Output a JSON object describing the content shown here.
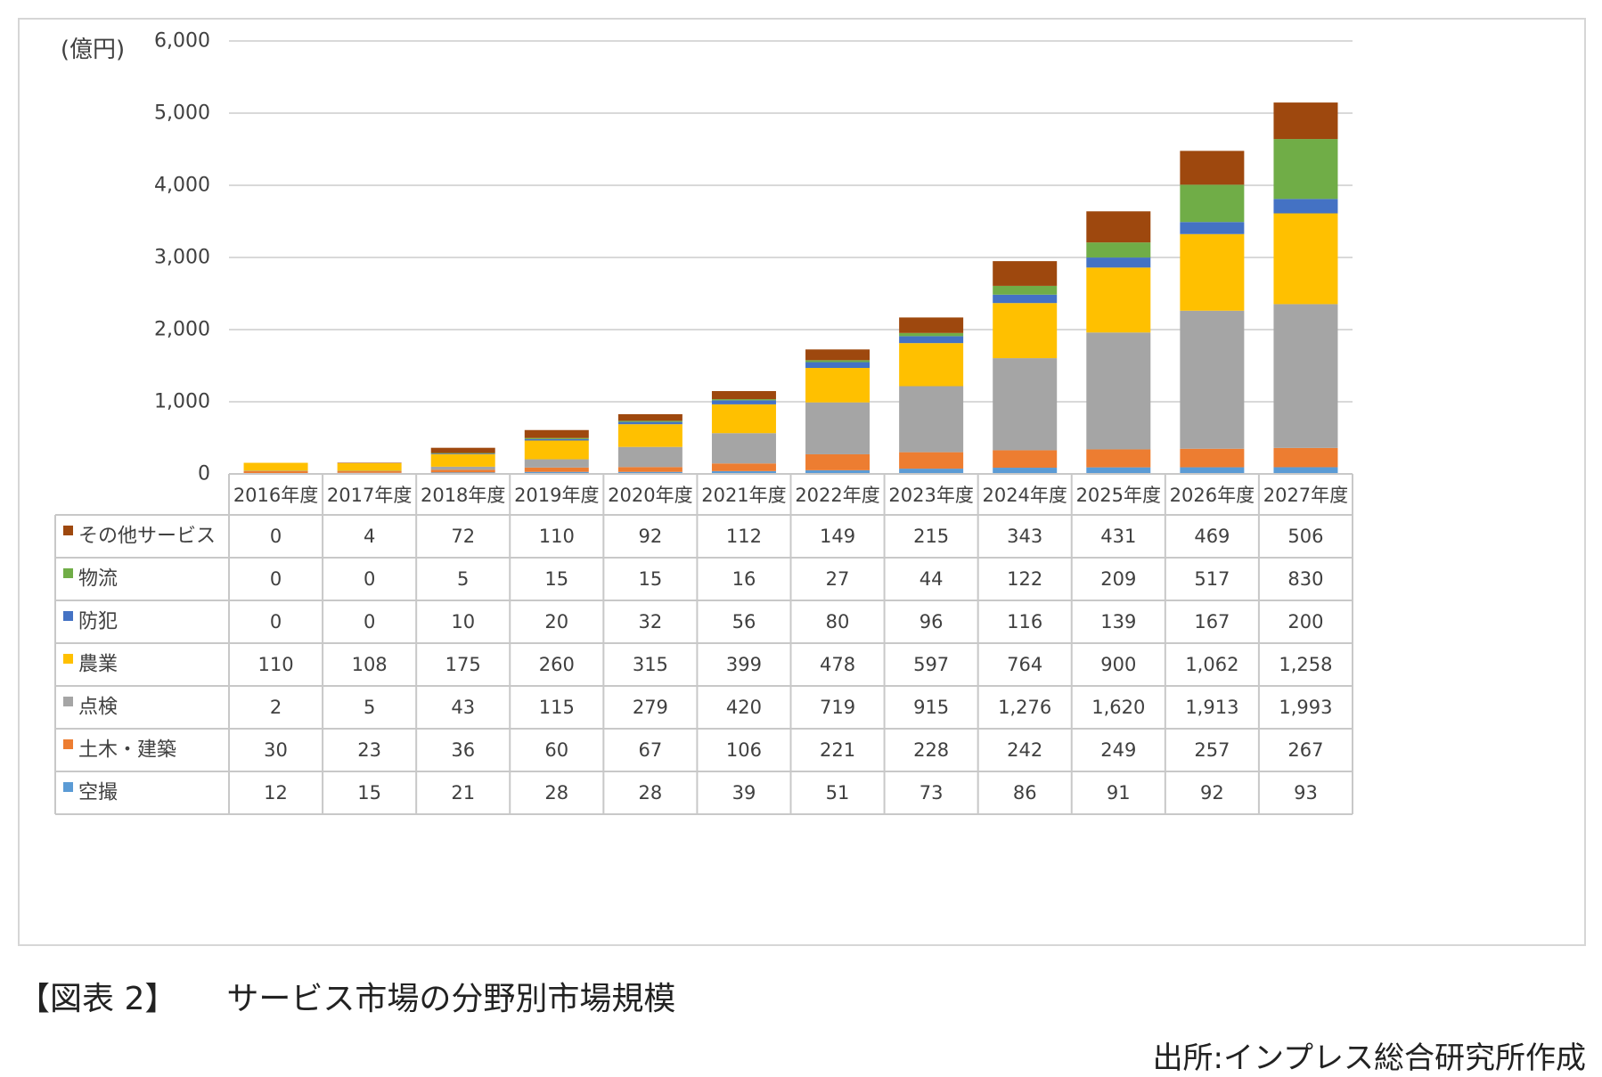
{
  "chart_data": {
    "type": "bar",
    "stacked": true,
    "unit_label": "(億円)",
    "ylim": [
      0,
      6000
    ],
    "yticks": [
      "0",
      "1,000",
      "2,000",
      "3,000",
      "4,000",
      "5,000",
      "6,000"
    ],
    "ytick_values": [
      0,
      1000,
      2000,
      3000,
      4000,
      5000,
      6000
    ],
    "categories": [
      "2016年度",
      "2017年度",
      "2018年度",
      "2019年度",
      "2020年度",
      "2021年度",
      "2022年度",
      "2023年度",
      "2024年度",
      "2025年度",
      "2026年度",
      "2027年度"
    ],
    "series": [
      {
        "name": "空撮",
        "color": "#5b9bd5",
        "values": [
          12,
          15,
          21,
          28,
          28,
          39,
          51,
          73,
          86,
          91,
          92,
          93
        ],
        "labels": [
          "12",
          "15",
          "21",
          "28",
          "28",
          "39",
          "51",
          "73",
          "86",
          "91",
          "92",
          "93"
        ]
      },
      {
        "name": "土木・建築",
        "color": "#ed7d31",
        "values": [
          30,
          23,
          36,
          60,
          67,
          106,
          221,
          228,
          242,
          249,
          257,
          267
        ],
        "labels": [
          "30",
          "23",
          "36",
          "60",
          "67",
          "106",
          "221",
          "228",
          "242",
          "249",
          "257",
          "267"
        ]
      },
      {
        "name": "点検",
        "color": "#a5a5a5",
        "values": [
          2,
          5,
          43,
          115,
          279,
          420,
          719,
          915,
          1276,
          1620,
          1913,
          1993
        ],
        "labels": [
          "2",
          "5",
          "43",
          "115",
          "279",
          "420",
          "719",
          "915",
          "1,276",
          "1,620",
          "1,913",
          "1,993"
        ]
      },
      {
        "name": "農業",
        "color": "#ffc000",
        "values": [
          110,
          108,
          175,
          260,
          315,
          399,
          478,
          597,
          764,
          900,
          1062,
          1258
        ],
        "labels": [
          "110",
          "108",
          "175",
          "260",
          "315",
          "399",
          "478",
          "597",
          "764",
          "900",
          "1,062",
          "1,258"
        ]
      },
      {
        "name": "防犯",
        "color": "#4472c4",
        "values": [
          0,
          0,
          10,
          20,
          32,
          56,
          80,
          96,
          116,
          139,
          167,
          200
        ],
        "labels": [
          "0",
          "0",
          "10",
          "20",
          "32",
          "56",
          "80",
          "96",
          "116",
          "139",
          "167",
          "200"
        ]
      },
      {
        "name": "物流",
        "color": "#70ad47",
        "values": [
          0,
          0,
          5,
          15,
          15,
          16,
          27,
          44,
          122,
          209,
          517,
          830
        ],
        "labels": [
          "0",
          "0",
          "5",
          "15",
          "15",
          "16",
          "27",
          "44",
          "122",
          "209",
          "517",
          "830"
        ]
      },
      {
        "name": "その他サービス",
        "color": "#9e480e",
        "values": [
          0,
          4,
          72,
          110,
          92,
          112,
          149,
          215,
          343,
          431,
          469,
          506
        ],
        "labels": [
          "0",
          "4",
          "72",
          "110",
          "92",
          "112",
          "149",
          "215",
          "343",
          "431",
          "469",
          "506"
        ]
      }
    ],
    "table_row_order": [
      "その他サービス",
      "物流",
      "防犯",
      "農業",
      "点検",
      "土木・建築",
      "空撮"
    ]
  },
  "caption": {
    "figure_number": "【図表 2】",
    "title": "サービス市場の分野別市場規模"
  },
  "source": "出所:インプレス総合研究所作成",
  "colors": {
    "gridline": "#d9d9d9",
    "table_border": "#c8c8c8",
    "text": "#404040"
  }
}
